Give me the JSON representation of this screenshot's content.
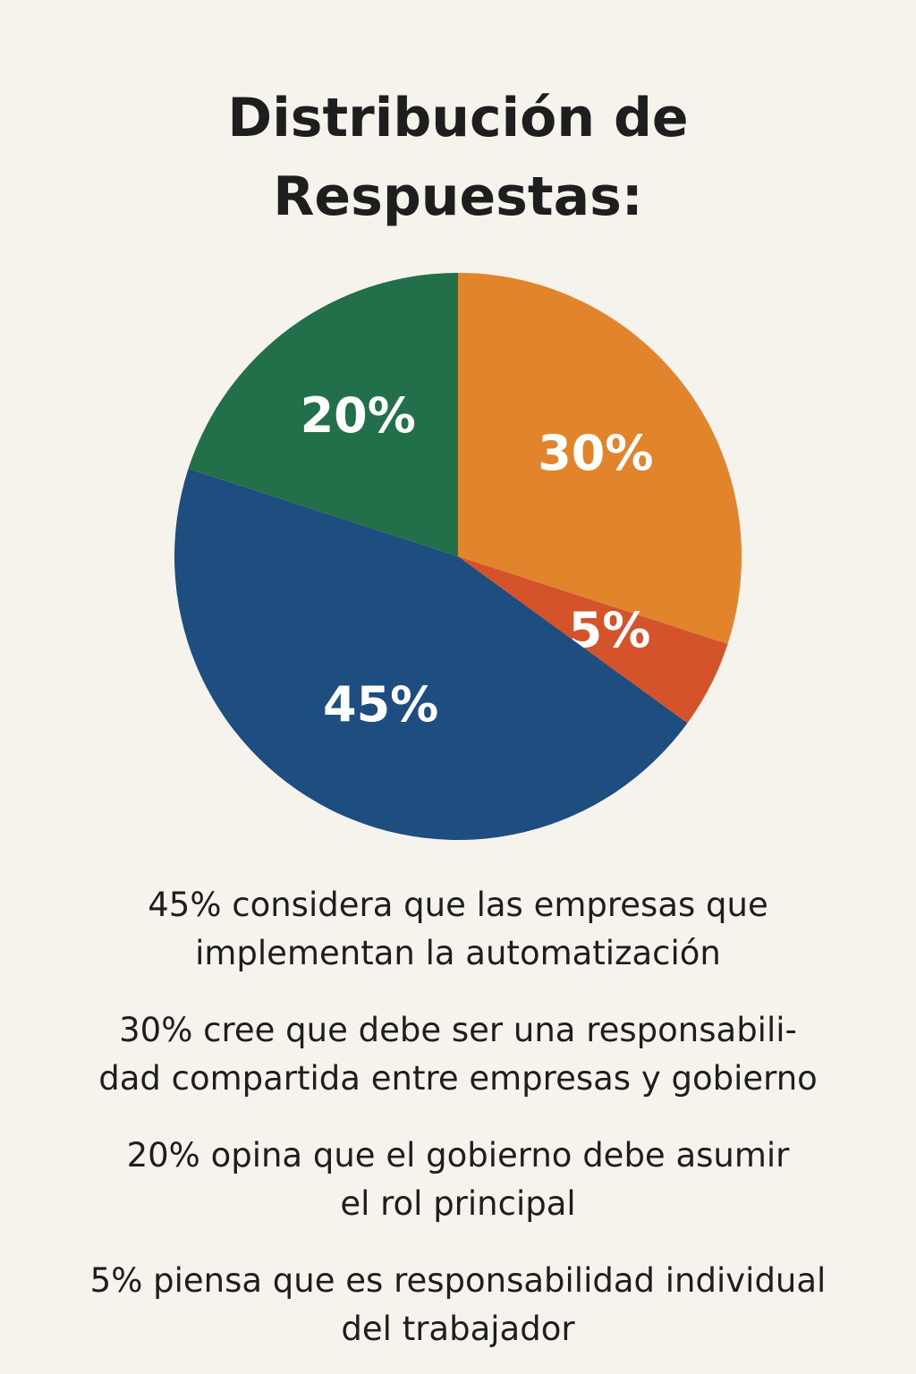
{
  "chart_data": {
    "type": "pie",
    "title": "Distribución de Respuestas:",
    "categories": [
      null,
      null,
      null,
      null
    ],
    "values": [
      30,
      5,
      45,
      20
    ],
    "value_labels": [
      "30%",
      "5%",
      "45%",
      "20%"
    ],
    "colors": [
      "#e2842c",
      "#d5532a",
      "#1e4e7f",
      "#22704a"
    ],
    "notes": [
      [
        "45% considera que las empresas que",
        "implementan la automatización"
      ],
      [
        "30% cree que debe ser una responsabili-",
        "dad compartida entre empresas y gobierno"
      ],
      [
        "20% opina que el gobierno debe asumir",
        "el rol principal"
      ],
      [
        "5% piensa que es responsabilidad individual",
        "del trabajador"
      ]
    ]
  }
}
